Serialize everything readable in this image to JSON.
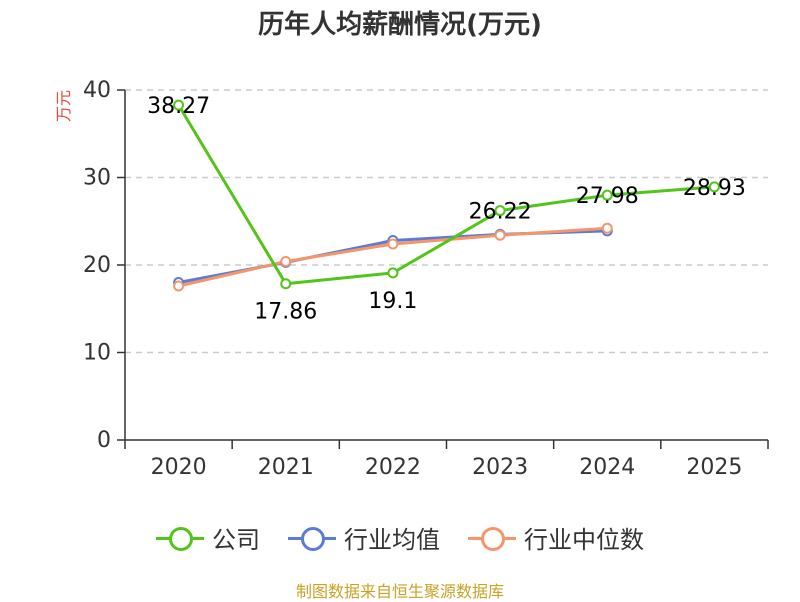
{
  "title": "历年人均薪酬情况(万元)",
  "source": "制图数据来自恒生聚源数据库",
  "chart_data": {
    "type": "line",
    "title": "历年人均薪酬情况(万元)",
    "ylabel": "万元",
    "xlabel": "",
    "ylim": [
      0,
      40
    ],
    "yticks": [
      0,
      10,
      20,
      30,
      40
    ],
    "categories": [
      "2020",
      "2021",
      "2022",
      "2023",
      "2024",
      "2025"
    ],
    "grid": true,
    "legend_position": "bottom",
    "series": [
      {
        "name": "公司",
        "color": "#52c41a",
        "values": [
          38.27,
          17.86,
          19.1,
          26.22,
          27.98,
          28.93
        ],
        "labels": [
          "38.27",
          "17.86",
          "19.1",
          "26.22",
          "27.98",
          "28.93"
        ]
      },
      {
        "name": "行业均值",
        "color": "#5b7bd5",
        "values": [
          18.0,
          20.3,
          22.8,
          23.5,
          23.9,
          null
        ]
      },
      {
        "name": "行业中位数",
        "color": "#f4956a",
        "values": [
          17.6,
          20.4,
          22.4,
          23.4,
          24.2,
          null
        ]
      }
    ]
  }
}
